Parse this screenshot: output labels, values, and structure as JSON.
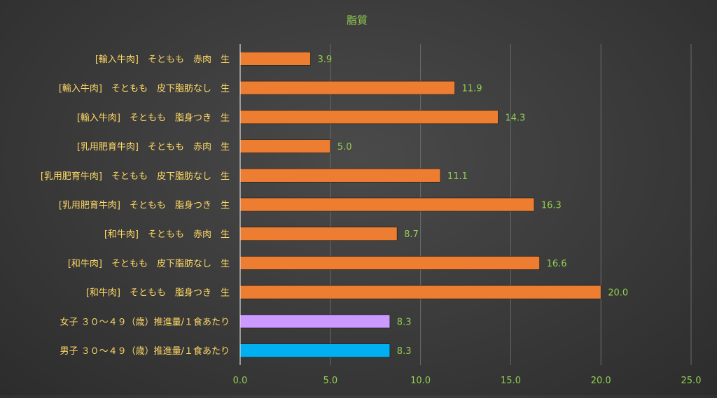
{
  "chart_data": {
    "type": "bar",
    "orientation": "horizontal",
    "title": "脂質",
    "categories": [
      "[輸入牛肉]　そともも　赤肉　生",
      "[輸入牛肉]　そともも　皮下脂肪なし　生",
      "[輸入牛肉]　そともも　脂身つき　生",
      "[乳用肥育牛肉]　そともも　赤肉　生",
      "[乳用肥育牛肉]　そともも　皮下脂肪なし　生",
      "[乳用肥育牛肉]　そともも　脂身つき　生",
      "[和牛肉]　そともも　赤肉　生",
      "[和牛肉]　そともも　皮下脂肪なし　生",
      "[和牛肉]　そともも　脂身つき　生",
      "女子 ３０～４９（歳）推進量/１食あたり",
      "男子 ３０～４９（歳）推進量/１食あたり"
    ],
    "values": [
      3.9,
      11.9,
      14.3,
      5.0,
      11.1,
      16.3,
      8.7,
      16.6,
      20.0,
      8.3,
      8.3
    ],
    "value_labels": [
      "3.9",
      "11.9",
      "14.3",
      "5.0",
      "11.1",
      "16.3",
      "8.7",
      "16.6",
      "20.0",
      "8.3",
      "8.3"
    ],
    "bar_colors": [
      "#ED7D31",
      "#ED7D31",
      "#ED7D31",
      "#ED7D31",
      "#ED7D31",
      "#ED7D31",
      "#ED7D31",
      "#ED7D31",
      "#ED7D31",
      "#CC99FF",
      "#00B0F0"
    ],
    "xlim": [
      0,
      25
    ],
    "xticks": [
      "0.0",
      "5.0",
      "10.0",
      "15.0",
      "20.0",
      "25.0"
    ],
    "xtick_values": [
      0,
      5,
      10,
      15,
      20,
      25
    ],
    "grid": "vertical",
    "legend": "none",
    "colors": {
      "title": "#92D050",
      "category_label": "#FFD966",
      "value_label": "#92D050",
      "tick_label": "#92D050",
      "grid": "#6a6a6a",
      "axis": "#d9d9d9"
    }
  }
}
